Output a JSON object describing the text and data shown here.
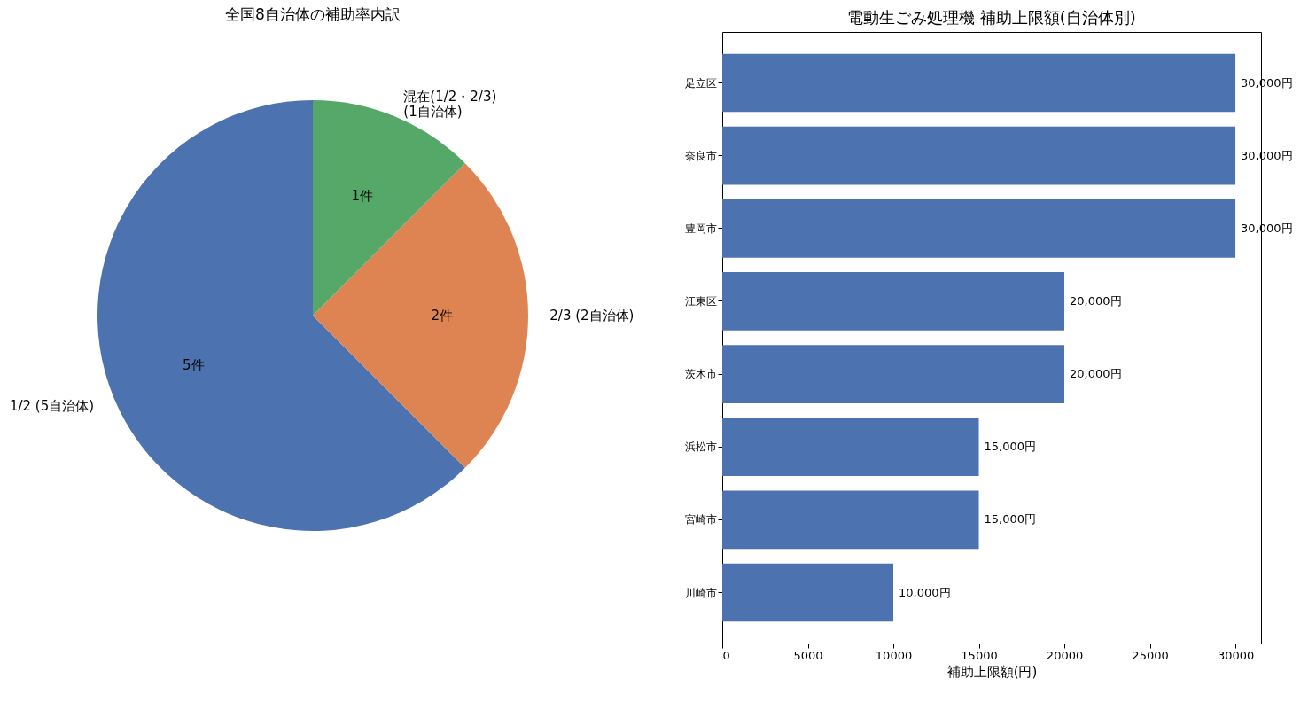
{
  "chart_data": [
    {
      "type": "pie",
      "title": "全国8自治体の補助率内訳",
      "categories": [
        "1/2 (5自治体)",
        "2/3 (2自治体)",
        "混在(1/2・2/3)\n(1自治体)"
      ],
      "values": [
        5,
        2,
        1
      ],
      "colors": [
        "#4c72b0",
        "#dd8452",
        "#55a868"
      ],
      "value_labels": [
        "5件",
        "2件",
        "1件"
      ]
    },
    {
      "type": "bar",
      "orientation": "horizontal",
      "title": "電動生ごみ処理機 補助上限額(自治体別)",
      "categories": [
        "足立区",
        "奈良市",
        "豊岡市",
        "江東区",
        "茨木市",
        "浜松市",
        "宮崎市",
        "川崎市"
      ],
      "values": [
        30000,
        30000,
        30000,
        20000,
        20000,
        15000,
        15000,
        10000
      ],
      "color": "#4c72b0",
      "value_labels": [
        "30,000円",
        "30,000円",
        "30,000円",
        "20,000円",
        "20,000円",
        "15,000円",
        "15,000円",
        "10,000円"
      ],
      "xlim": [
        0,
        31500
      ],
      "xticks": [
        0,
        5000,
        10000,
        15000,
        20000,
        25000,
        30000
      ],
      "xlabel": "補助上限額(円)"
    }
  ]
}
